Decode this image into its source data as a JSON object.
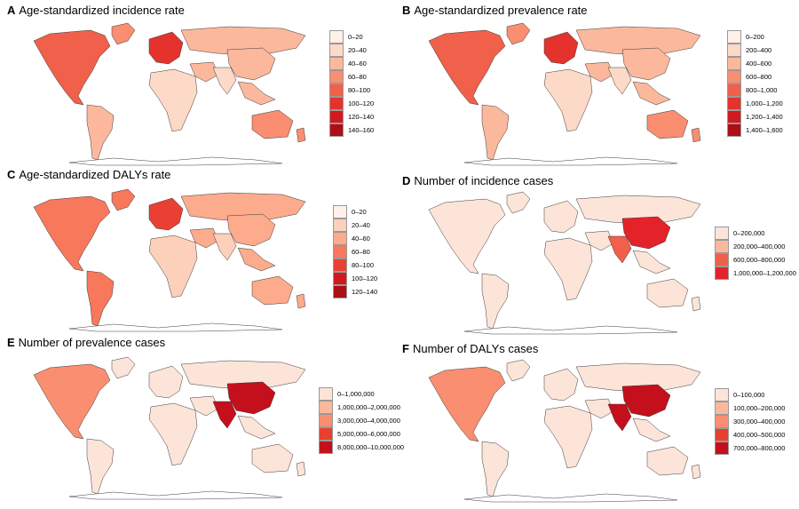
{
  "panels": [
    {
      "letter": "A",
      "title": "Age-standardized incidence rate",
      "legend": [
        {
          "label": "0–20",
          "color": "#fff0ea"
        },
        {
          "label": "20–40",
          "color": "#fdd9c8"
        },
        {
          "label": "40–60",
          "color": "#fcb89c"
        },
        {
          "label": "60–80",
          "color": "#f98e70"
        },
        {
          "label": "80–100",
          "color": "#f0604a"
        },
        {
          "label": "100–120",
          "color": "#e4322c"
        },
        {
          "label": "120–140",
          "color": "#d01a20"
        },
        {
          "label": "140–160",
          "color": "#ae0e16"
        }
      ],
      "map_colors": {
        "northamerica": "#f0604a",
        "greenland": "#f98e70",
        "southamerica": "#fcb89c",
        "europe": "#e4322c",
        "russia": "#fcb89c",
        "africa": "#fdd9c8",
        "middleeast": "#fcb89c",
        "southasia": "#fdd9c8",
        "eastasia": "#fcb89c",
        "seasia": "#fcb89c",
        "australia": "#f98e70",
        "islands": "#f98e70"
      }
    },
    {
      "letter": "B",
      "title": "Age-standardized prevalence rate",
      "legend": [
        {
          "label": "0–200",
          "color": "#fff0ea"
        },
        {
          "label": "200–400",
          "color": "#fdd9c8"
        },
        {
          "label": "400–600",
          "color": "#fcb89c"
        },
        {
          "label": "600–800",
          "color": "#f98e70"
        },
        {
          "label": "800–1,000",
          "color": "#f0604a"
        },
        {
          "label": "1,000–1,200",
          "color": "#e4322c"
        },
        {
          "label": "1,200–1,400",
          "color": "#d01a20"
        },
        {
          "label": "1,400–1,600",
          "color": "#ae0e16"
        }
      ],
      "map_colors": {
        "northamerica": "#f0604a",
        "greenland": "#f98e70",
        "southamerica": "#fcb89c",
        "europe": "#e4322c",
        "russia": "#fcb89c",
        "africa": "#fdd9c8",
        "middleeast": "#fcb89c",
        "southasia": "#fdd9c8",
        "eastasia": "#fcb89c",
        "seasia": "#fcb89c",
        "australia": "#f98e70",
        "islands": "#f98e70"
      }
    },
    {
      "letter": "C",
      "title": "Age-standardized DALYs rate",
      "legend": [
        {
          "label": "0–20",
          "color": "#fff0ea"
        },
        {
          "label": "20–40",
          "color": "#fdd0bc"
        },
        {
          "label": "40–60",
          "color": "#fcab8c"
        },
        {
          "label": "60–80",
          "color": "#f7785a"
        },
        {
          "label": "80–100",
          "color": "#ea4034"
        },
        {
          "label": "100–120",
          "color": "#d01a20"
        },
        {
          "label": "120–140",
          "color": "#ae0e16"
        }
      ],
      "map_colors": {
        "northamerica": "#f7785a",
        "greenland": "#f7785a",
        "southamerica": "#f7785a",
        "europe": "#ea4034",
        "russia": "#fcab8c",
        "africa": "#fdd0bc",
        "middleeast": "#fcab8c",
        "southasia": "#fdd0bc",
        "eastasia": "#fcab8c",
        "seasia": "#fcab8c",
        "australia": "#fcab8c",
        "islands": "#fcab8c"
      }
    },
    {
      "letter": "D",
      "title": "Number of incidence cases",
      "legend": [
        {
          "label": "0–200,000",
          "color": "#fde4d8"
        },
        {
          "label": "200,000–400,000",
          "color": "#fcb89c"
        },
        {
          "label": "600,000–800,000",
          "color": "#f0604a"
        },
        {
          "label": "1,000,000–1,200,000",
          "color": "#e4222a"
        }
      ],
      "map_colors": {
        "northamerica": "#fde4d8",
        "greenland": "#fde4d8",
        "southamerica": "#fde4d8",
        "europe": "#fde4d8",
        "russia": "#fde4d8",
        "africa": "#fde4d8",
        "middleeast": "#fde4d8",
        "southasia": "#f0604a",
        "eastasia": "#e4222a",
        "seasia": "#fde4d8",
        "australia": "#fde4d8",
        "islands": "#fde4d8"
      }
    },
    {
      "letter": "E",
      "title": "Number of prevalence cases",
      "legend": [
        {
          "label": "0–1,000,000",
          "color": "#fde4d8"
        },
        {
          "label": "1,000,000–2,000,000",
          "color": "#fcb89c"
        },
        {
          "label": "3,000,000–4,000,000",
          "color": "#f98e70"
        },
        {
          "label": "5,000,000–6,000,000",
          "color": "#e8402e"
        },
        {
          "label": "8,000,000–10,000,000",
          "color": "#c4101c"
        }
      ],
      "map_colors": {
        "northamerica": "#f98e70",
        "greenland": "#fde4d8",
        "southamerica": "#fde4d8",
        "europe": "#fde4d8",
        "russia": "#fde4d8",
        "africa": "#fde4d8",
        "middleeast": "#fde4d8",
        "southasia": "#c4101c",
        "eastasia": "#c4101c",
        "seasia": "#fde4d8",
        "australia": "#fde4d8",
        "islands": "#fde4d8"
      }
    },
    {
      "letter": "F",
      "title": "Number of DALYs cases",
      "legend": [
        {
          "label": "0–100,000",
          "color": "#fde4d8"
        },
        {
          "label": "100,000–200,000",
          "color": "#fcb89c"
        },
        {
          "label": "300,000–400,000",
          "color": "#f98e70"
        },
        {
          "label": "400,000–500,000",
          "color": "#e8402e"
        },
        {
          "label": "700,000–800,000",
          "color": "#c4101c"
        }
      ],
      "map_colors": {
        "northamerica": "#f98e70",
        "greenland": "#fde4d8",
        "southamerica": "#fde4d8",
        "europe": "#fde4d8",
        "russia": "#fde4d8",
        "africa": "#fde4d8",
        "middleeast": "#fde4d8",
        "southasia": "#c4101c",
        "eastasia": "#c4101c",
        "seasia": "#fde4d8",
        "australia": "#fde4d8",
        "islands": "#fde4d8"
      }
    }
  ]
}
